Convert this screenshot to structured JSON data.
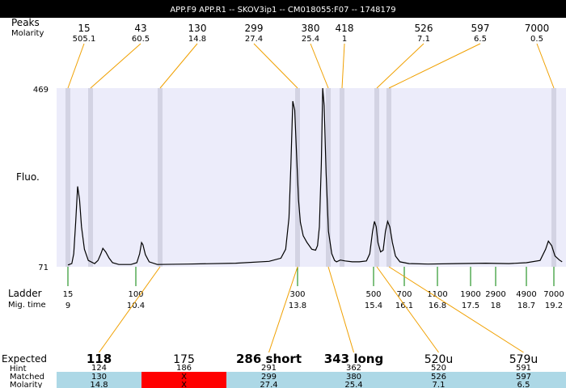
{
  "title": "APP.F9  APP.R1 -- SKOV3ip1 -- CM018055:F07 -- 1748179",
  "labels": {
    "peaks": "Peaks",
    "molarity": "Molarity",
    "fluo": "Fluo.",
    "ladder": "Ladder",
    "mig_time": "Mig. time",
    "expected": "Expected",
    "hint": "Hint",
    "matched": "Matched",
    "molarity_row": "Molarity"
  },
  "colors": {
    "plot_bg": "#ececfa",
    "peak_band": "#d3d3e3",
    "connector": "#f0a000",
    "ladder_tick": "#008000",
    "matched_bg": "#add8e6",
    "missing_bg": "#ff0000"
  },
  "chart_data": {
    "type": "line",
    "y_axis": {
      "min": 71,
      "max": 469
    },
    "peaks": [
      {
        "size": "15",
        "molarity": "505.1"
      },
      {
        "size": "43",
        "molarity": "60.5"
      },
      {
        "size": "130",
        "molarity": "14.8"
      },
      {
        "size": "299",
        "molarity": "27.4"
      },
      {
        "size": "380",
        "molarity": "25.4"
      },
      {
        "size": "418",
        "molarity": "1"
      },
      {
        "size": "526",
        "molarity": "7.1"
      },
      {
        "size": "597",
        "molarity": "6.5"
      },
      {
        "size": "7000",
        "molarity": "0.5"
      }
    ],
    "ladder": [
      {
        "size": "15",
        "time": "9"
      },
      {
        "size": "100",
        "time": "10.4"
      },
      {
        "size": "300",
        "time": "13.8"
      },
      {
        "size": "500",
        "time": "15.4"
      },
      {
        "size": "700",
        "time": "16.1"
      },
      {
        "size": "1100",
        "time": "16.8"
      },
      {
        "size": "1900",
        "time": "17.5"
      },
      {
        "size": "2900",
        "time": "18"
      },
      {
        "size": "4900",
        "time": "18.7"
      },
      {
        "size": "7000",
        "time": "19.2"
      }
    ],
    "trace": [
      [
        9.0,
        75
      ],
      [
        9.08,
        78
      ],
      [
        9.12,
        100
      ],
      [
        9.16,
        170
      ],
      [
        9.2,
        250
      ],
      [
        9.24,
        220
      ],
      [
        9.28,
        160
      ],
      [
        9.34,
        110
      ],
      [
        9.42,
        85
      ],
      [
        9.55,
        78
      ],
      [
        9.62,
        85
      ],
      [
        9.68,
        100
      ],
      [
        9.72,
        112
      ],
      [
        9.78,
        104
      ],
      [
        9.85,
        90
      ],
      [
        9.92,
        80
      ],
      [
        10.05,
        76
      ],
      [
        10.3,
        76
      ],
      [
        10.42,
        80
      ],
      [
        10.48,
        100
      ],
      [
        10.52,
        125
      ],
      [
        10.55,
        120
      ],
      [
        10.6,
        98
      ],
      [
        10.68,
        82
      ],
      [
        10.85,
        76
      ],
      [
        11.5,
        77
      ],
      [
        12.5,
        79
      ],
      [
        13.2,
        83
      ],
      [
        13.45,
        90
      ],
      [
        13.55,
        110
      ],
      [
        13.62,
        180
      ],
      [
        13.66,
        300
      ],
      [
        13.7,
        440
      ],
      [
        13.74,
        420
      ],
      [
        13.78,
        320
      ],
      [
        13.82,
        220
      ],
      [
        13.86,
        170
      ],
      [
        13.92,
        140
      ],
      [
        14.0,
        125
      ],
      [
        14.1,
        110
      ],
      [
        14.18,
        108
      ],
      [
        14.22,
        118
      ],
      [
        14.26,
        160
      ],
      [
        14.3,
        300
      ],
      [
        14.33,
        469
      ],
      [
        14.36,
        430
      ],
      [
        14.4,
        280
      ],
      [
        14.45,
        150
      ],
      [
        14.52,
        100
      ],
      [
        14.58,
        85
      ],
      [
        14.62,
        82
      ],
      [
        14.7,
        86
      ],
      [
        14.8,
        84
      ],
      [
        14.95,
        82
      ],
      [
        15.1,
        82
      ],
      [
        15.25,
        84
      ],
      [
        15.32,
        100
      ],
      [
        15.38,
        150
      ],
      [
        15.42,
        172
      ],
      [
        15.46,
        160
      ],
      [
        15.5,
        125
      ],
      [
        15.56,
        104
      ],
      [
        15.62,
        108
      ],
      [
        15.67,
        150
      ],
      [
        15.72,
        172
      ],
      [
        15.77,
        160
      ],
      [
        15.83,
        125
      ],
      [
        15.9,
        95
      ],
      [
        16.0,
        82
      ],
      [
        16.2,
        78
      ],
      [
        16.6,
        77
      ],
      [
        17.2,
        78
      ],
      [
        17.8,
        79
      ],
      [
        18.3,
        78
      ],
      [
        18.7,
        80
      ],
      [
        18.95,
        85
      ],
      [
        19.05,
        110
      ],
      [
        19.1,
        128
      ],
      [
        19.16,
        118
      ],
      [
        19.22,
        95
      ],
      [
        19.3,
        86
      ],
      [
        19.35,
        82
      ]
    ],
    "expected": [
      {
        "label": "118",
        "hint": "124",
        "matched": "130",
        "molarity": "14.8",
        "found": true
      },
      {
        "label": "175",
        "hint": "186",
        "matched": "X",
        "molarity": "X",
        "found": false
      },
      {
        "label": "286 short",
        "hint": "291",
        "matched": "299",
        "molarity": "27.4",
        "found": true
      },
      {
        "label": "343 long",
        "hint": "362",
        "matched": "380",
        "molarity": "25.4",
        "found": true
      },
      {
        "label": "520u",
        "hint": "520",
        "matched": "526",
        "molarity": "7.1",
        "found": true
      },
      {
        "label": "579u",
        "hint": "591",
        "matched": "597",
        "molarity": "6.5",
        "found": true
      }
    ]
  }
}
